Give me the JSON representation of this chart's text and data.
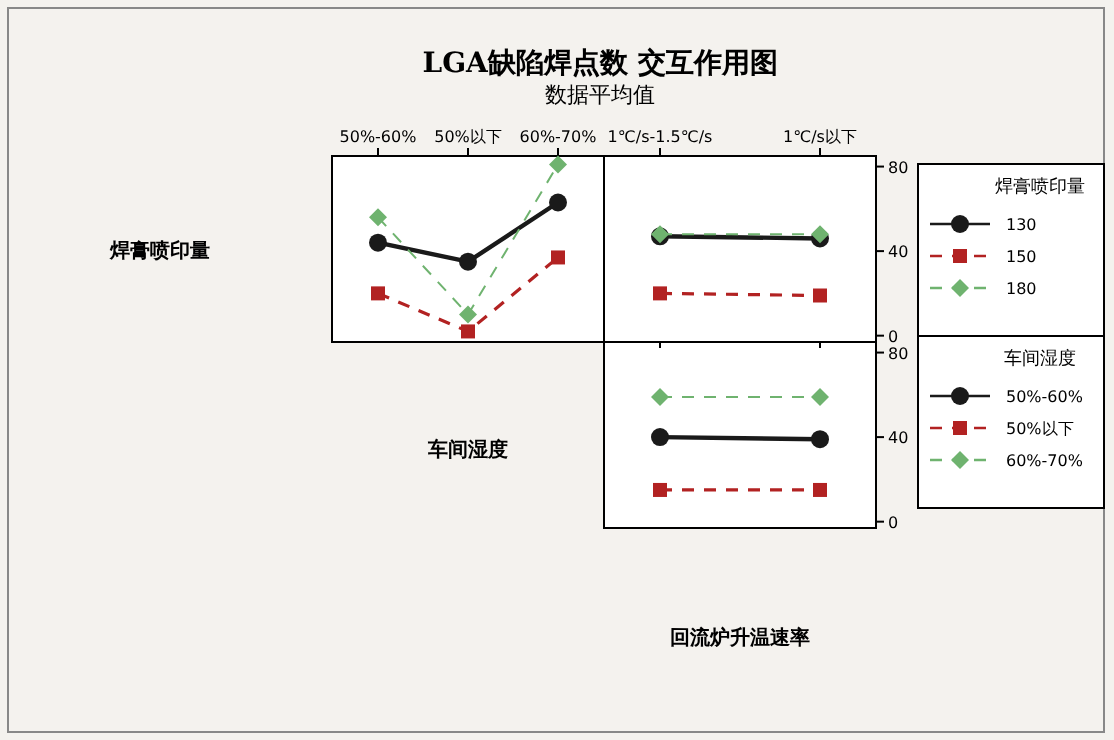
{
  "chart_data": [
    {
      "type": "line",
      "title": "LGA缺陷焊点数 交互作用图",
      "subtitle": "数据平均值",
      "xlabel": "车间湿度",
      "ylabel": "焊膏喷印量",
      "categories": [
        "50%-60%",
        "50%以下",
        "60%-70%"
      ],
      "ylim": [
        -3,
        85
      ],
      "tick_labels": "x",
      "series": [
        {
          "color": "#1a1a1a",
          "marker": "circle",
          "line_style": "solid",
          "values": [
            44,
            35,
            63
          ]
        },
        {
          "color": "#b22222",
          "marker": "square",
          "line_style": "dashed",
          "values": [
            20,
            2,
            37
          ]
        },
        {
          "color": "#6fb36f",
          "marker": "diamond",
          "line_style": "dashed",
          "values": [
            56,
            10,
            81
          ]
        }
      ]
    },
    {
      "type": "line",
      "xlabel": "回流炉升温速率",
      "categories": [
        "1℃/s-1.5℃/s",
        "1℃/s以下"
      ],
      "ylim": [
        -3,
        85
      ],
      "yticks": [
        0,
        40,
        80
      ],
      "legend": "right",
      "legend_title": "焊膏喷印量",
      "series": [
        {
          "name": "130",
          "color": "#1a1a1a",
          "marker": "circle",
          "line_style": "solid",
          "values": [
            47,
            46
          ]
        },
        {
          "name": "150",
          "color": "#b22222",
          "marker": "square",
          "line_style": "dashed",
          "values": [
            20,
            19
          ]
        },
        {
          "name": "180",
          "color": "#6fb36f",
          "marker": "diamond",
          "line_style": "dashed",
          "values": [
            48,
            48
          ]
        }
      ]
    },
    {
      "type": "line",
      "categories": [
        null,
        null
      ],
      "ylim": [
        -3,
        85
      ],
      "yticks": [
        0,
        40,
        80
      ],
      "tick_labels": "y",
      "legend": "right",
      "legend_title": "车间湿度",
      "series": [
        {
          "name": "50%-60%",
          "color": "#1a1a1a",
          "marker": "circle",
          "line_style": "solid",
          "values": [
            40,
            39
          ]
        },
        {
          "name": "50%以下",
          "color": "#b22222",
          "marker": "square",
          "line_style": "dashed",
          "values": [
            15,
            15
          ]
        },
        {
          "name": "60%-70%",
          "color": "#6fb36f",
          "marker": "diamond",
          "line_style": "dashed",
          "values": [
            59,
            59
          ]
        }
      ]
    }
  ]
}
